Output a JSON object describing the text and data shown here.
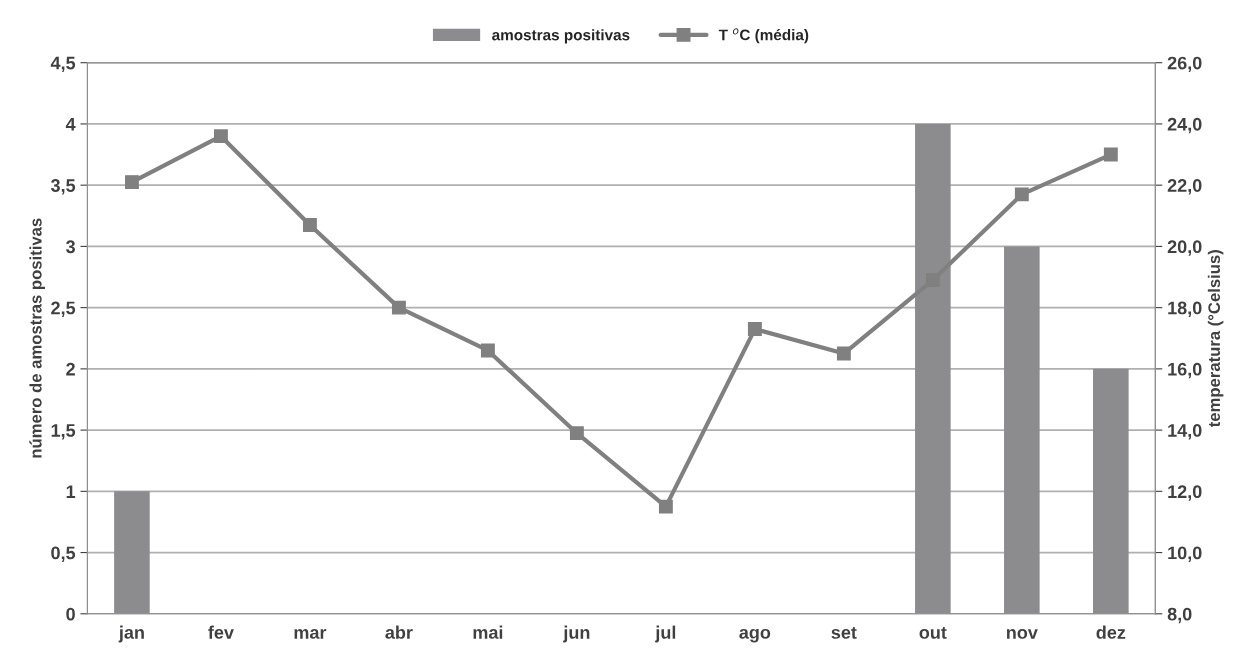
{
  "chart_data": {
    "type": "bar",
    "categories": [
      "jan",
      "fev",
      "mar",
      "abr",
      "mai",
      "jun",
      "jul",
      "ago",
      "set",
      "out",
      "nov",
      "dez"
    ],
    "ylabel": "número de amostras positivas",
    "y2label": "temperatura (°Celsius)",
    "series": [
      {
        "name": "amostras positivas",
        "color": "#8c8c8e",
        "values": [
          1,
          0,
          0,
          0,
          0,
          0,
          0,
          0,
          0,
          4,
          3,
          2
        ]
      },
      {
        "name": "T $^{o}$C (média)",
        "type": "line",
        "axis": "y2",
        "color": "#808080",
        "marker": "square",
        "line_style": "solid",
        "values": [
          22.1,
          23.6,
          20.7,
          18.0,
          16.6,
          13.9,
          11.5,
          17.3,
          16.5,
          18.9,
          21.7,
          23.0
        ]
      }
    ],
    "ylim": [
      0,
      4.5
    ],
    "yticks": [
      0,
      {
        "value": 0.5,
        "label": "0,5"
      },
      1,
      {
        "value": 1.5,
        "label": "1,5"
      },
      2,
      {
        "value": 2.5,
        "label": "2,5"
      },
      3,
      {
        "value": 3.5,
        "label": "3,5"
      },
      4,
      {
        "value": 4.5,
        "label": "4,5"
      }
    ],
    "y2lim": [
      8,
      26
    ],
    "y2ticks": [
      {
        "value": 8,
        "label": "8,0"
      },
      {
        "value": 10,
        "label": "10,0"
      },
      {
        "value": 12,
        "label": "12,0"
      },
      {
        "value": 14,
        "label": "14,0"
      },
      {
        "value": 16,
        "label": "16,0"
      },
      {
        "value": 18,
        "label": "18,0"
      },
      {
        "value": 20,
        "label": "20,0"
      },
      {
        "value": 22,
        "label": "22,0"
      },
      {
        "value": 24,
        "label": "24,0"
      },
      {
        "value": 26,
        "label": "26,0"
      }
    ],
    "grid": "y",
    "legend": "top"
  }
}
